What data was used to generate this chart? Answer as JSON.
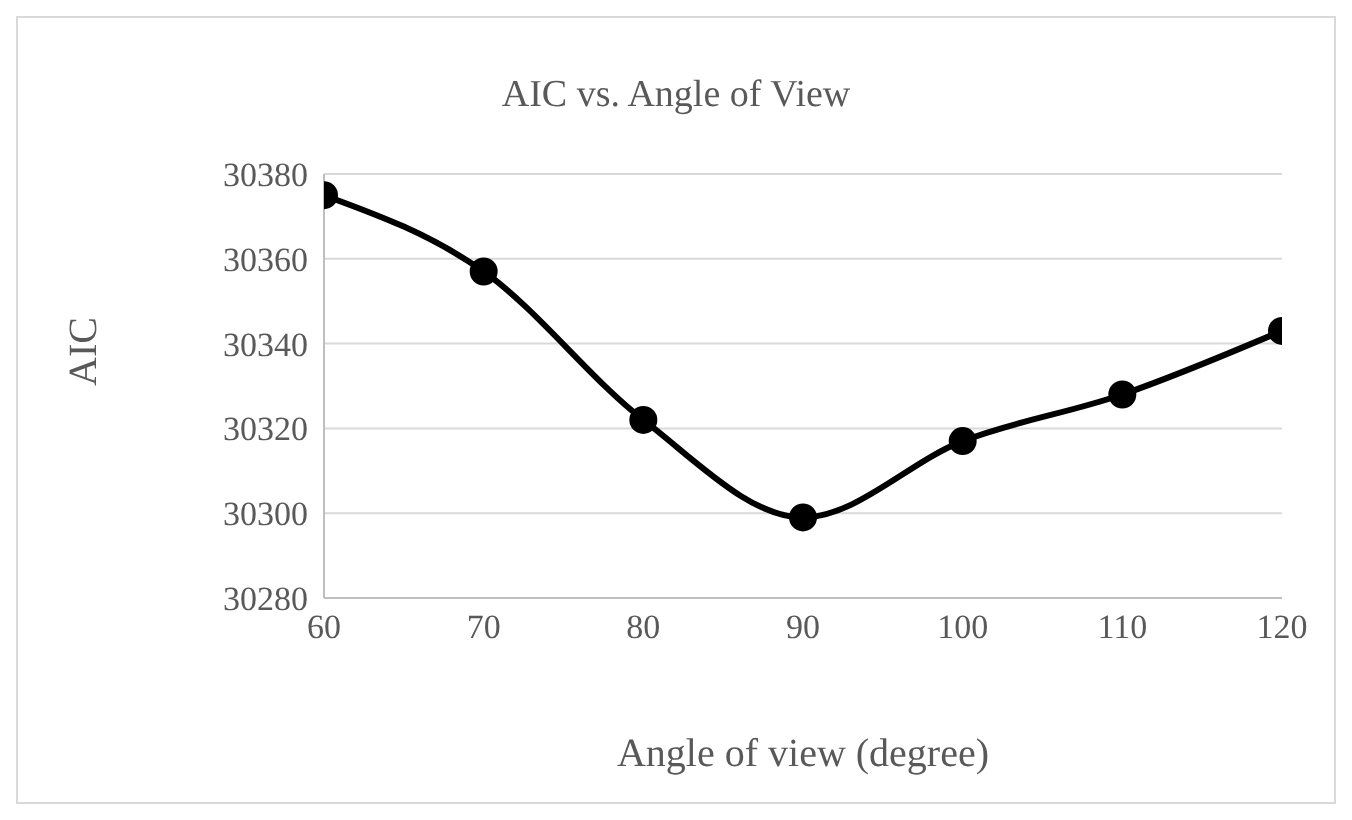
{
  "chart_data": {
    "type": "line",
    "title": "AIC vs. Angle of View",
    "xlabel": "Angle of view (degree)",
    "ylabel": "AIC",
    "x": [
      60,
      70,
      80,
      90,
      100,
      110,
      120
    ],
    "series": [
      {
        "color": "#000000",
        "values": [
          30375,
          30357,
          30322,
          30299,
          30317,
          30328,
          30343
        ]
      }
    ],
    "xlim": [
      60,
      120
    ],
    "xticks": [
      60,
      70,
      80,
      90,
      100,
      110,
      120
    ],
    "ylim": [
      30280,
      30380
    ],
    "yticks": [
      30280,
      30300,
      30320,
      30340,
      30360,
      30380
    ],
    "grid": "y",
    "marker": "circle",
    "line_style": "solid",
    "legend": false
  }
}
